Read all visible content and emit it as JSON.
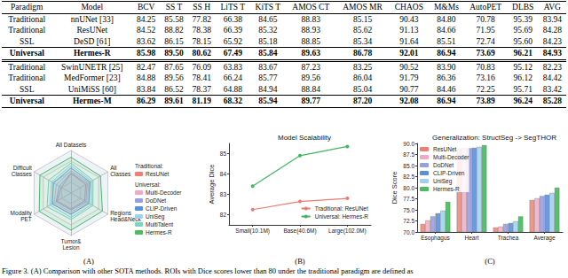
{
  "table": {
    "header": [
      "Paradigm",
      "Model",
      "BCV",
      "SS T",
      "SS H",
      "LiTS T",
      "KiTS T",
      "AMOS CT",
      "AMOS MR",
      "CHAOS",
      "M&Ms",
      "AutoPET",
      "DLBS",
      "AVG"
    ],
    "sections": [
      [
        {
          "paradigm": "Traditional",
          "model": "nnUNet [33]",
          "values": [
            "84.25",
            "85.58",
            "77.82",
            "66.38",
            "84.65",
            "88.83",
            "85.15",
            "90.43",
            "84.80",
            "70.78",
            "95.39",
            "83.94"
          ]
        },
        {
          "paradigm": "Traditional",
          "model": "ResUNet",
          "values": [
            "84.52",
            "88.82",
            "78.38",
            "66.39",
            "85.32",
            "88.93",
            "85.62",
            "91.13",
            "84.66",
            "71.95",
            "95.69",
            "84.28"
          ]
        },
        {
          "paradigm": "SSL",
          "model": "DeSD [61]",
          "values": [
            "83.62",
            "86.15",
            "78.15",
            "65.92",
            "85.18",
            "88.85",
            "85.34",
            "91.64",
            "85.51",
            "72.74",
            "95.60",
            "84.23"
          ]
        },
        {
          "paradigm": "Universal",
          "model": "Hermes-R",
          "bold": true,
          "values": [
            "85.98",
            "89.50",
            "80.62",
            "67.49",
            "85.84",
            "89.63",
            "86.78",
            "92.01",
            "86.94",
            "73.69",
            "96.21",
            "84.93"
          ]
        }
      ],
      [
        {
          "paradigm": "Traditional",
          "model": "SwinUNETR [25]",
          "values": [
            "82.47",
            "87.65",
            "76.09",
            "63.83",
            "83.67",
            "87.23",
            "83.25",
            "90.52",
            "83.90",
            "70.83",
            "95.12",
            "82.23"
          ]
        },
        {
          "paradigm": "Traditional",
          "model": "MedFormer [23]",
          "values": [
            "84.88",
            "89.56",
            "78.41",
            "66.24",
            "85.77",
            "89.56",
            "86.04",
            "91.79",
            "86.36",
            "73.16",
            "96.12",
            "84.42"
          ]
        },
        {
          "paradigm": "SSL",
          "model": "UniMiSS [60]",
          "values": [
            "83.84",
            "86.52",
            "78.37",
            "64.88",
            "84.94",
            "88.84",
            "85.04",
            "90.77",
            "84.46",
            "72.25",
            "95.71",
            "83.42"
          ]
        },
        {
          "paradigm": "Universal",
          "model": "Hermes-M",
          "bold": true,
          "values": [
            "86.29",
            "89.61",
            "81.19",
            "68.32",
            "85.94",
            "89.77",
            "87.20",
            "92.08",
            "86.94",
            "73.89",
            "96.24",
            "85.28"
          ]
        }
      ]
    ]
  },
  "chart_data": [
    {
      "type": "radar",
      "annotation": "(A)",
      "indicators": [
        {
          "name": "All Datasets",
          "min": 83.5,
          "max": 85.2
        },
        {
          "name": "Difficult\nClasses",
          "min": 65,
          "max": 68.8
        },
        {
          "name": "Modality\nPET",
          "min": 70.5,
          "max": 74.2
        },
        {
          "name": "Tumor&\nLesion",
          "min": 68.5,
          "max": 72.5
        },
        {
          "name": "Regions\nHead&Neck",
          "min": 78.5,
          "max": 81.2
        },
        {
          "name": "All\nClasses",
          "min": 82,
          "max": 84.5
        }
      ],
      "series": [
        {
          "name": "ResUNet",
          "group": "Traditional:",
          "color": "#ef7f74",
          "values": [
            84.28,
            66.0,
            71.9,
            70.0,
            79.5,
            83.0
          ]
        },
        {
          "name": "Multi-Decoder",
          "group": "Universal:",
          "color": "#f0a9c4",
          "values": [
            84.4,
            66.5,
            72.2,
            70.3,
            79.7,
            83.2
          ]
        },
        {
          "name": "DoDNet",
          "group": "Universal:",
          "color": "#9a9ee0",
          "values": [
            84.3,
            66.2,
            72.0,
            70.1,
            79.6,
            83.1
          ]
        },
        {
          "name": "CLIP-Driven",
          "group": "Universal:",
          "color": "#5a8fda",
          "values": [
            84.5,
            66.8,
            72.4,
            70.5,
            79.8,
            83.3
          ]
        },
        {
          "name": "UniSeg",
          "group": "Universal:",
          "color": "#9fd1ef",
          "values": [
            84.6,
            67.0,
            72.6,
            70.8,
            80.0,
            83.4
          ]
        },
        {
          "name": "MultiTalent",
          "group": "Universal:",
          "color": "#7fd3c2",
          "values": [
            84.7,
            67.3,
            72.9,
            71.0,
            80.1,
            83.5
          ]
        },
        {
          "name": "Hermes-R",
          "group": "Universal:",
          "color": "#4cbb62",
          "values": [
            84.93,
            68.2,
            73.69,
            72.0,
            80.8,
            84.0
          ]
        }
      ]
    },
    {
      "type": "line",
      "title": "Model Scalability",
      "annotation": "(B)",
      "categories": [
        "Small(10.1M)",
        "Base(40.6M)",
        "Large(102.0M)"
      ],
      "ylabel": "Average Dice",
      "ylim": [
        81.5,
        85.5
      ],
      "yticks": [
        82,
        83,
        84,
        85
      ],
      "grid": false,
      "legend": "lower right",
      "marker": "circle",
      "series": [
        {
          "name": "Traditional: ResUNet",
          "color": "#ef7b70",
          "values": [
            82.25,
            82.65,
            82.8
          ]
        },
        {
          "name": "Universal: Hermes-R",
          "color": "#43b45d",
          "values": [
            83.4,
            84.9,
            85.35
          ]
        }
      ]
    },
    {
      "type": "bar",
      "title": "Generalization: StructSeg -> SegTHOR",
      "annotation": "(C)",
      "categories": [
        "Esophagus",
        "Heart",
        "Trachea",
        "Average"
      ],
      "ylabel": "Dice Score",
      "ylim": [
        70,
        90
      ],
      "yticks": [
        {
          "value": 70,
          "label": "70.0"
        },
        {
          "value": 72.5,
          "label": "72.5"
        },
        {
          "value": 75,
          "label": "75.0"
        },
        {
          "value": 77.5,
          "label": "77.5"
        },
        {
          "value": 80,
          "label": "80.0"
        },
        {
          "value": 82.5,
          "label": "82.5"
        },
        {
          "value": 85,
          "label": "85.0"
        },
        {
          "value": 87.5,
          "label": "87.5"
        },
        {
          "value": 90,
          "label": "90.0"
        }
      ],
      "grid": false,
      "legend": "upper left",
      "series": [
        {
          "name": "ResUNet",
          "color": "#f2968c",
          "values": [
            71.8,
            88.8,
            71.0,
            77.2
          ]
        },
        {
          "name": "Multi-Decoder",
          "color": "#f3b8cb",
          "values": [
            72.6,
            89.0,
            71.2,
            77.6
          ]
        },
        {
          "name": "DoDNet",
          "color": "#a4a8e4",
          "values": [
            73.5,
            88.9,
            71.8,
            78.1
          ]
        },
        {
          "name": "CLIP-Driven",
          "color": "#6b9be0",
          "values": [
            74.2,
            89.0,
            72.0,
            78.4
          ]
        },
        {
          "name": "UniSeg",
          "color": "#a9d8f2",
          "values": [
            74.8,
            89.2,
            72.4,
            78.8
          ]
        },
        {
          "name": "Hermes-R",
          "color": "#55c26b",
          "values": [
            76.8,
            89.6,
            73.5,
            80.0
          ]
        }
      ]
    }
  ],
  "caption": "Figure 3. (A) Comparison with other SOTA methods. ROIs with Dice scores lower than 80 under the traditional paradigm are defined as"
}
